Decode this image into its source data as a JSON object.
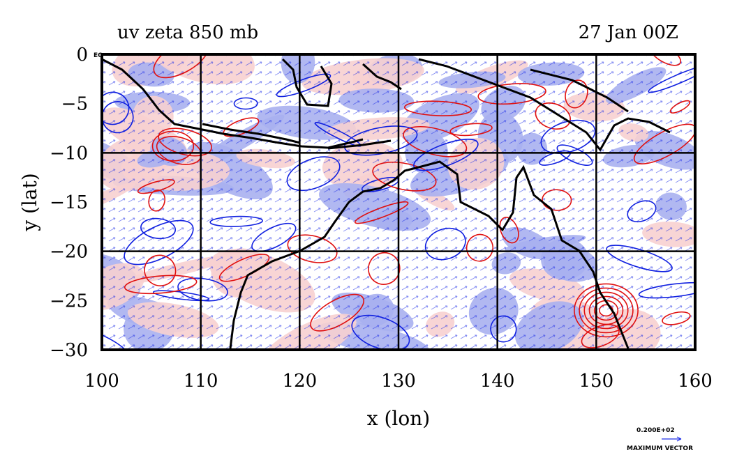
{
  "title_left": "uv zeta 850 mb",
  "title_right": "27 Jan 00Z",
  "xlabel": "x (lon)",
  "ylabel": "y (lat)",
  "x_range": [
    100,
    160
  ],
  "y_range": [
    -30,
    0
  ],
  "x_ticks": [
    "100",
    "110",
    "120",
    "130",
    "140",
    "150",
    "160"
  ],
  "y_ticks": [
    "0",
    "−5",
    "−10",
    "−15",
    "−20",
    "−25",
    "−30"
  ],
  "eq_label": "EQ",
  "gridlines_lon": [
    110,
    120,
    130,
    140,
    150
  ],
  "gridlines_lat": [
    -10,
    -20
  ],
  "vector_reference": {
    "value_label": "0.200E+02",
    "caption": "MAXIMUM VECTOR"
  },
  "colors": {
    "positive_shading": "#f7d0d0",
    "negative_shading": "#a9b0ef",
    "positive_contour": "#e01010",
    "negative_contour": "#1020e0",
    "vectors": "#2030e8",
    "coastline": "#000000"
  }
}
